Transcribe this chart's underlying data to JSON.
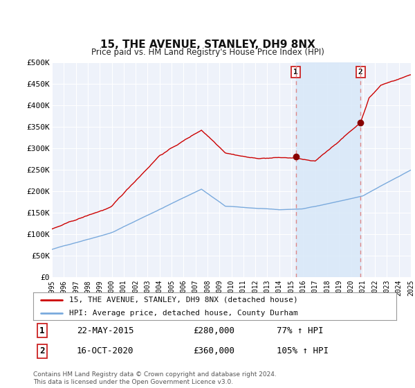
{
  "title": "15, THE AVENUE, STANLEY, DH9 8NX",
  "subtitle": "Price paid vs. HM Land Registry's House Price Index (HPI)",
  "ylim": [
    0,
    500000
  ],
  "yticks": [
    0,
    50000,
    100000,
    150000,
    200000,
    250000,
    300000,
    350000,
    400000,
    450000,
    500000
  ],
  "ytick_labels": [
    "£0",
    "£50K",
    "£100K",
    "£150K",
    "£200K",
    "£250K",
    "£300K",
    "£350K",
    "£400K",
    "£450K",
    "£500K"
  ],
  "plot_bg_color": "#eef2fa",
  "grid_color": "#ffffff",
  "red_line_color": "#cc0000",
  "blue_line_color": "#7aaadd",
  "marker_color": "#880000",
  "vline_color": "#dd8888",
  "shade_color": "#d8e8f8",
  "label1_date": "22-MAY-2015",
  "label1_price": "£280,000",
  "label1_hpi": "77% ↑ HPI",
  "label2_date": "16-OCT-2020",
  "label2_price": "£360,000",
  "label2_hpi": "105% ↑ HPI",
  "legend_line1": "15, THE AVENUE, STANLEY, DH9 8NX (detached house)",
  "legend_line2": "HPI: Average price, detached house, County Durham",
  "footer": "Contains HM Land Registry data © Crown copyright and database right 2024.\nThis data is licensed under the Open Government Licence v3.0.",
  "sale1_x": 2015.38,
  "sale1_y": 280000,
  "sale2_x": 2020.79,
  "sale2_y": 360000,
  "xmin": 1995,
  "xmax": 2025
}
